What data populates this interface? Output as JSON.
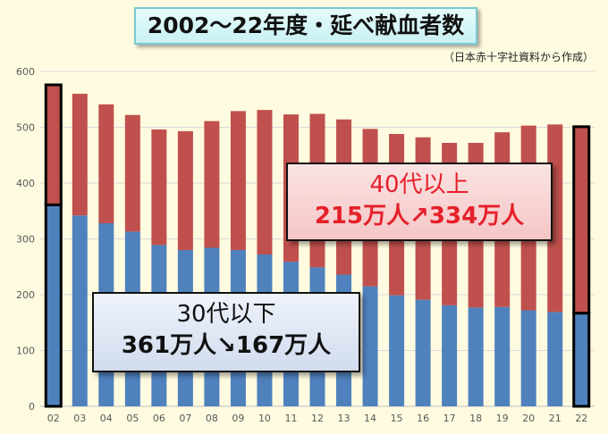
{
  "title": "2002～22年度・延べ献血者数",
  "source": "（日本赤十字社資料から作成）",
  "colors": {
    "older": "#c0504d",
    "younger": "#4f81bd",
    "axis": "#595959",
    "grid": "#d9d9d9"
  },
  "annotations": {
    "older_heading": "40代以上",
    "older_change": "215万人↗334万人",
    "younger_heading": "30代以下",
    "younger_change": "361万人↘167万人"
  },
  "chart_data": {
    "type": "bar",
    "stacked": true,
    "categories": [
      "02",
      "03",
      "04",
      "05",
      "06",
      "07",
      "08",
      "09",
      "10",
      "11",
      "12",
      "13",
      "14",
      "15",
      "16",
      "17",
      "18",
      "19",
      "20",
      "21",
      "22"
    ],
    "series": [
      {
        "key": "younger",
        "values": [
          361,
          342,
          328,
          313,
          289,
          280,
          284,
          280,
          272,
          259,
          249,
          236,
          215,
          199,
          191,
          181,
          177,
          178,
          172,
          169,
          167
        ]
      },
      {
        "key": "older",
        "values": [
          215,
          218,
          213,
          209,
          207,
          213,
          227,
          249,
          259,
          264,
          275,
          278,
          282,
          289,
          291,
          291,
          295,
          313,
          331,
          336,
          334
        ]
      }
    ],
    "ylim": [
      0,
      600
    ],
    "yticks": [
      0,
      100,
      200,
      300,
      400,
      500,
      600
    ],
    "ytick_labels": [
      "0",
      "100",
      "200",
      "300",
      "400",
      "500",
      "600"
    ],
    "highlighted_categories": [
      "02",
      "22"
    ],
    "grid": true
  }
}
